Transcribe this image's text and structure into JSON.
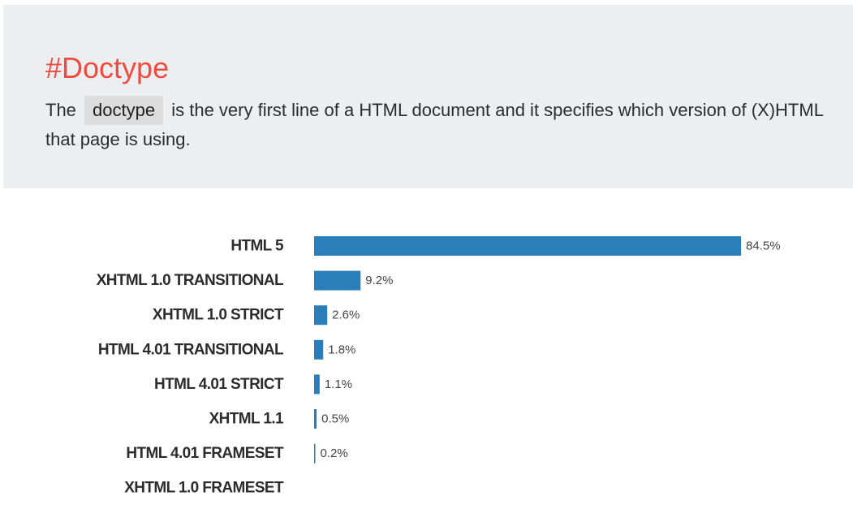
{
  "header": {
    "title": "#Doctype",
    "intro_before": "The",
    "intro_code": "doctype",
    "intro_after": "is the very first line of a HTML document and it specifies which version of (X)HTML that page is using."
  },
  "colors": {
    "accent": "#ef4b40",
    "bar": "#2a7fba",
    "header_bg": "#eceeef"
  },
  "chart_data": {
    "type": "bar",
    "orientation": "horizontal",
    "categories": [
      "HTML 5",
      "XHTML 1.0 TRANSITIONAL",
      "XHTML 1.0 STRICT",
      "HTML 4.01 TRANSITIONAL",
      "HTML 4.01 STRICT",
      "XHTML 1.1",
      "HTML 4.01 FRAMESET",
      "XHTML 1.0 FRAMESET"
    ],
    "values": [
      84.5,
      9.2,
      2.6,
      1.8,
      1.1,
      0.5,
      0.2,
      null
    ],
    "value_labels": [
      "84.5%",
      "9.2%",
      "2.6%",
      "1.8%",
      "1.1%",
      "0.5%",
      "0.2%",
      ""
    ],
    "unit": "%",
    "xlim": [
      0,
      84.5
    ],
    "grid": false,
    "legend": "none"
  }
}
